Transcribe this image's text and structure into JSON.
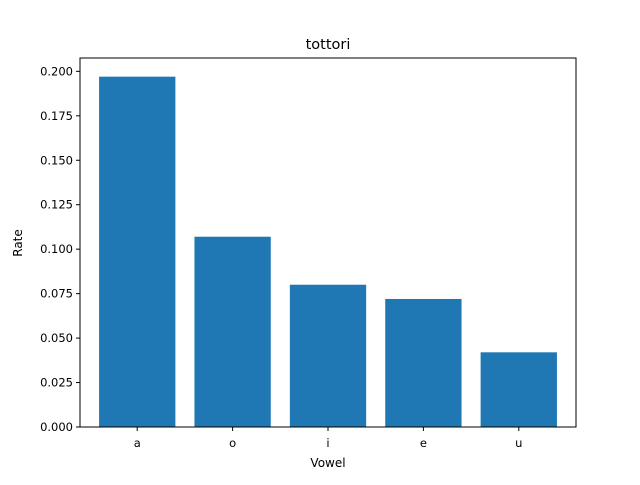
{
  "chart_data": {
    "type": "bar",
    "title": "tottori",
    "xlabel": "Vowel",
    "ylabel": "Rate",
    "categories": [
      "a",
      "o",
      "i",
      "e",
      "u"
    ],
    "values": [
      0.197,
      0.107,
      0.08,
      0.072,
      0.042
    ],
    "ylim": [
      0,
      0.2075
    ],
    "yticks": [
      0.0,
      0.025,
      0.05,
      0.075,
      0.1,
      0.125,
      0.15,
      0.175,
      0.2
    ],
    "ytick_labels": [
      "0.000",
      "0.025",
      "0.050",
      "0.075",
      "0.100",
      "0.125",
      "0.150",
      "0.175",
      "0.200"
    ],
    "bar_color": "#1f77b4",
    "grid": false,
    "legend": "none"
  }
}
